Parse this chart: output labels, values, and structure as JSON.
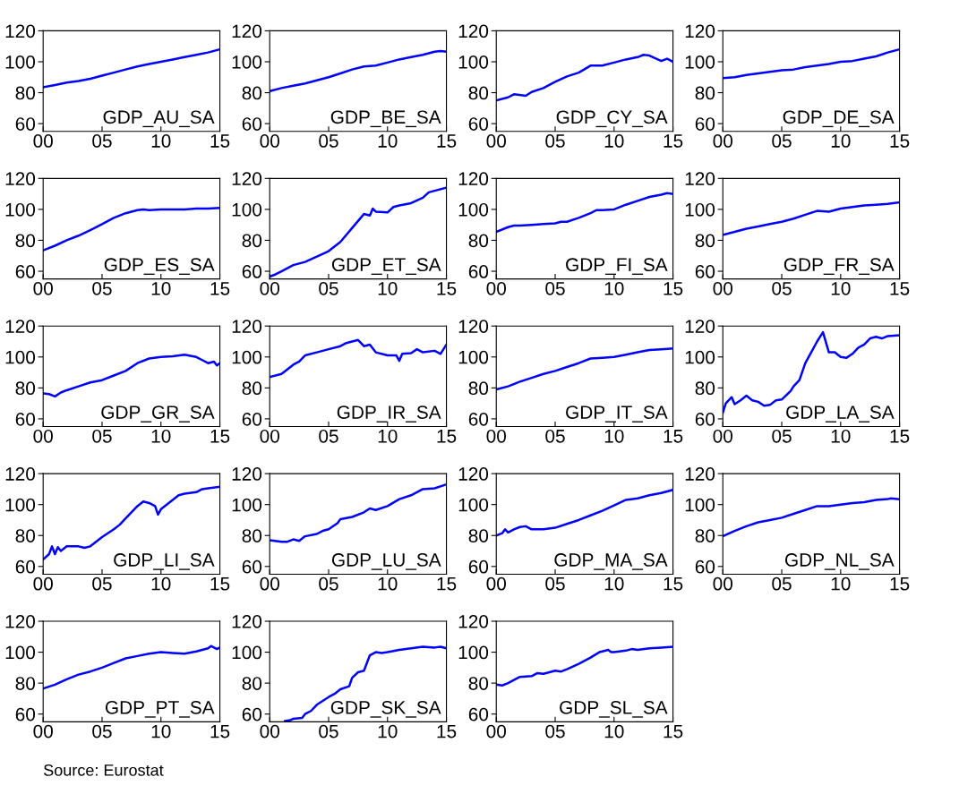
{
  "chart_data": [
    {
      "type": "line",
      "xlim": [
        2000,
        2015
      ],
      "ylim": [
        55,
        120
      ],
      "yticks": [
        60,
        80,
        100,
        120
      ],
      "xticks": [
        {
          "value": 2000,
          "label": "00"
        },
        {
          "value": 2005,
          "label": "05"
        },
        {
          "value": 2010,
          "label": "10"
        },
        {
          "value": 2015,
          "label": "15"
        }
      ],
      "legend": false,
      "grid": false,
      "series": [
        {
          "name": "GDP_AU_SA",
          "color": "#0000ff",
          "x": [
            2000,
            2001,
            2002,
            2003,
            2004,
            2005,
            2006,
            2007,
            2008,
            2009,
            2010,
            2011,
            2012,
            2013,
            2014,
            2015
          ],
          "values": [
            83.5,
            85,
            86.5,
            87.5,
            89,
            91,
            93,
            95,
            97,
            98.5,
            100,
            101.5,
            103,
            104.5,
            106,
            108
          ]
        }
      ]
    },
    {
      "type": "line",
      "xlim": [
        2000,
        2015
      ],
      "ylim": [
        55,
        120
      ],
      "yticks": [
        60,
        80,
        100,
        120
      ],
      "xticks": [
        {
          "value": 2000,
          "label": "00"
        },
        {
          "value": 2005,
          "label": "05"
        },
        {
          "value": 2010,
          "label": "10"
        },
        {
          "value": 2015,
          "label": "15"
        }
      ],
      "legend": false,
      "grid": false,
      "series": [
        {
          "name": "GDP_BE_SA",
          "color": "#0000ff",
          "x": [
            2000,
            2001,
            2002,
            2003,
            2004,
            2005,
            2006,
            2007,
            2008,
            2009,
            2010,
            2011,
            2012,
            2013,
            2014,
            2014.5,
            2015
          ],
          "values": [
            81,
            83,
            84.5,
            86,
            88,
            90,
            92.5,
            95,
            97,
            97.5,
            99.5,
            101.5,
            103,
            104.5,
            106.5,
            107,
            106.5
          ]
        }
      ]
    },
    {
      "type": "line",
      "xlim": [
        2000,
        2015
      ],
      "ylim": [
        55,
        120
      ],
      "yticks": [
        60,
        80,
        100,
        120
      ],
      "xticks": [
        {
          "value": 2000,
          "label": "00"
        },
        {
          "value": 2005,
          "label": "05"
        },
        {
          "value": 2010,
          "label": "10"
        },
        {
          "value": 2015,
          "label": "15"
        }
      ],
      "legend": false,
      "grid": false,
      "series": [
        {
          "name": "GDP_CY_SA",
          "color": "#0000ff",
          "x": [
            2000,
            2001,
            2001.5,
            2002.5,
            2003,
            2004,
            2005,
            2006,
            2007,
            2008,
            2009,
            2010,
            2011,
            2012,
            2012.5,
            2013,
            2014,
            2014.5,
            2015
          ],
          "values": [
            75,
            77,
            79,
            78,
            80.5,
            83,
            87,
            90.5,
            93,
            97.5,
            97.5,
            99.5,
            101.5,
            103,
            104.5,
            104,
            100.5,
            102,
            100
          ]
        }
      ]
    },
    {
      "type": "line",
      "xlim": [
        2000,
        2015
      ],
      "ylim": [
        55,
        120
      ],
      "yticks": [
        60,
        80,
        100,
        120
      ],
      "xticks": [
        {
          "value": 2000,
          "label": "00"
        },
        {
          "value": 2005,
          "label": "05"
        },
        {
          "value": 2010,
          "label": "10"
        },
        {
          "value": 2015,
          "label": "15"
        }
      ],
      "legend": false,
      "grid": false,
      "series": [
        {
          "name": "GDP_DE_SA",
          "color": "#0000ff",
          "x": [
            2000,
            2001,
            2002,
            2003,
            2004,
            2005,
            2006,
            2007,
            2008,
            2009,
            2010,
            2011,
            2012,
            2013,
            2014,
            2015
          ],
          "values": [
            89.5,
            90,
            91.5,
            92.5,
            93.5,
            94.5,
            95,
            96.5,
            97.5,
            98.5,
            100,
            100.5,
            102,
            103.5,
            106,
            108
          ]
        }
      ]
    },
    {
      "type": "line",
      "xlim": [
        2000,
        2015
      ],
      "ylim": [
        55,
        120
      ],
      "yticks": [
        60,
        80,
        100,
        120
      ],
      "xticks": [
        {
          "value": 2000,
          "label": "00"
        },
        {
          "value": 2005,
          "label": "05"
        },
        {
          "value": 2010,
          "label": "10"
        },
        {
          "value": 2015,
          "label": "15"
        }
      ],
      "legend": false,
      "grid": false,
      "series": [
        {
          "name": "GDP_ES_SA",
          "color": "#0000ff",
          "x": [
            2000,
            2001,
            2002,
            2003,
            2004,
            2005,
            2006,
            2007,
            2008,
            2008.5,
            2009,
            2010,
            2011,
            2012,
            2013,
            2014,
            2015
          ],
          "values": [
            73.5,
            76.5,
            80,
            83,
            86.5,
            90.5,
            94.5,
            97.5,
            99.5,
            100,
            99.5,
            100,
            100,
            100,
            100.5,
            100.5,
            101
          ]
        }
      ]
    },
    {
      "type": "line",
      "xlim": [
        2000,
        2015
      ],
      "ylim": [
        55,
        120
      ],
      "yticks": [
        60,
        80,
        100,
        120
      ],
      "xticks": [
        {
          "value": 2000,
          "label": "00"
        },
        {
          "value": 2005,
          "label": "05"
        },
        {
          "value": 2010,
          "label": "10"
        },
        {
          "value": 2015,
          "label": "15"
        }
      ],
      "legend": false,
      "grid": false,
      "series": [
        {
          "name": "GDP_ET_SA",
          "color": "#0000ff",
          "x": [
            2000,
            2000.5,
            2001,
            2001.5,
            2002,
            2003,
            2004,
            2005,
            2006,
            2007,
            2008,
            2008.5,
            2008.75,
            2009,
            2010,
            2010.5,
            2011,
            2012,
            2013,
            2013.5,
            2014,
            2015
          ],
          "values": [
            56.5,
            58,
            60,
            62,
            64,
            66,
            69.5,
            73,
            79,
            88,
            97,
            96,
            100.5,
            98.5,
            98,
            101.5,
            102.5,
            104,
            107.5,
            111,
            112,
            114
          ]
        }
      ]
    },
    {
      "type": "line",
      "xlim": [
        2000,
        2015
      ],
      "ylim": [
        55,
        120
      ],
      "yticks": [
        60,
        80,
        100,
        120
      ],
      "xticks": [
        {
          "value": 2000,
          "label": "00"
        },
        {
          "value": 2005,
          "label": "05"
        },
        {
          "value": 2010,
          "label": "10"
        },
        {
          "value": 2015,
          "label": "15"
        }
      ],
      "legend": false,
      "grid": false,
      "series": [
        {
          "name": "GDP_FI_SA",
          "color": "#0000ff",
          "x": [
            2000,
            2001,
            2001.5,
            2002,
            2003,
            2004,
            2005,
            2005.5,
            2006,
            2007,
            2008,
            2008.5,
            2009,
            2010,
            2011,
            2012,
            2013,
            2014,
            2014.5,
            2015
          ],
          "values": [
            85.5,
            88.5,
            89.5,
            89.5,
            90,
            90.5,
            91,
            92,
            92,
            94.5,
            97.5,
            99.5,
            99.5,
            100,
            103,
            105.5,
            108,
            109.5,
            110.5,
            110
          ]
        }
      ]
    },
    {
      "type": "line",
      "xlim": [
        2000,
        2015
      ],
      "ylim": [
        55,
        120
      ],
      "yticks": [
        60,
        80,
        100,
        120
      ],
      "xticks": [
        {
          "value": 2000,
          "label": "00"
        },
        {
          "value": 2005,
          "label": "05"
        },
        {
          "value": 2010,
          "label": "10"
        },
        {
          "value": 2015,
          "label": "15"
        }
      ],
      "legend": false,
      "grid": false,
      "series": [
        {
          "name": "GDP_FR_SA",
          "color": "#0000ff",
          "x": [
            2000,
            2001,
            2002,
            2003,
            2004,
            2005,
            2006,
            2007,
            2008,
            2009,
            2010,
            2011,
            2012,
            2013,
            2014,
            2015
          ],
          "values": [
            83.5,
            85.5,
            87.5,
            89,
            90.5,
            92,
            94,
            96.5,
            99,
            98.5,
            100.5,
            101.5,
            102.5,
            103,
            103.5,
            104.5
          ]
        }
      ]
    },
    {
      "type": "line",
      "xlim": [
        2000,
        2015
      ],
      "ylim": [
        55,
        120
      ],
      "yticks": [
        60,
        80,
        100,
        120
      ],
      "xticks": [
        {
          "value": 2000,
          "label": "00"
        },
        {
          "value": 2005,
          "label": "05"
        },
        {
          "value": 2010,
          "label": "10"
        },
        {
          "value": 2015,
          "label": "15"
        }
      ],
      "legend": false,
      "grid": false,
      "series": [
        {
          "name": "GDP_GR_SA",
          "color": "#0000ff",
          "x": [
            2000,
            2000.5,
            2001,
            2001.5,
            2002,
            2003,
            2004,
            2005,
            2006,
            2007,
            2008,
            2009,
            2010,
            2011,
            2012,
            2013,
            2013.5,
            2014,
            2014.5,
            2014.75,
            2015
          ],
          "values": [
            76.5,
            76,
            74.5,
            77,
            78.5,
            81,
            83.5,
            85,
            88,
            91,
            96,
            99,
            100,
            100.5,
            101.5,
            100,
            98,
            96,
            97,
            94.5,
            96
          ]
        }
      ]
    },
    {
      "type": "line",
      "xlim": [
        2000,
        2015
      ],
      "ylim": [
        55,
        120
      ],
      "yticks": [
        60,
        80,
        100,
        120
      ],
      "xticks": [
        {
          "value": 2000,
          "label": "00"
        },
        {
          "value": 2005,
          "label": "05"
        },
        {
          "value": 2010,
          "label": "10"
        },
        {
          "value": 2015,
          "label": "15"
        }
      ],
      "legend": false,
      "grid": false,
      "series": [
        {
          "name": "GDP_IR_SA",
          "color": "#0000ff",
          "x": [
            2000,
            2001,
            2002,
            2002.5,
            2003,
            2004,
            2005,
            2006,
            2006.5,
            2007,
            2007.5,
            2008,
            2008.5,
            2009,
            2010,
            2010.75,
            2011,
            2011.25,
            2012,
            2012.5,
            2013,
            2014,
            2014.5,
            2015
          ],
          "values": [
            87,
            89,
            95,
            97,
            101,
            103,
            105,
            107,
            109,
            110,
            111,
            107,
            108,
            103,
            101,
            101,
            97.5,
            102,
            102.5,
            105,
            103,
            104,
            102,
            108
          ]
        }
      ]
    },
    {
      "type": "line",
      "xlim": [
        2000,
        2015
      ],
      "ylim": [
        55,
        120
      ],
      "yticks": [
        60,
        80,
        100,
        120
      ],
      "xticks": [
        {
          "value": 2000,
          "label": "00"
        },
        {
          "value": 2005,
          "label": "05"
        },
        {
          "value": 2010,
          "label": "10"
        },
        {
          "value": 2015,
          "label": "15"
        }
      ],
      "legend": false,
      "grid": false,
      "series": [
        {
          "name": "GDP_IT_SA",
          "color": "#0000ff",
          "x": [
            2000,
            2001,
            2002,
            2003,
            2004,
            2005,
            2006,
            2007,
            2008,
            2009,
            2010,
            2011,
            2012,
            2013,
            2014,
            2015
          ],
          "values": [
            79,
            81,
            84,
            86.5,
            89,
            91,
            93.5,
            96,
            99,
            99.5,
            100,
            101.5,
            103,
            104.5,
            105,
            105.5
          ]
        }
      ]
    },
    {
      "type": "line",
      "xlim": [
        2000,
        2015
      ],
      "ylim": [
        55,
        120
      ],
      "yticks": [
        60,
        80,
        100,
        120
      ],
      "xticks": [
        {
          "value": 2000,
          "label": "00"
        },
        {
          "value": 2005,
          "label": "05"
        },
        {
          "value": 2010,
          "label": "10"
        },
        {
          "value": 2015,
          "label": "15"
        }
      ],
      "legend": false,
      "grid": false,
      "series": [
        {
          "name": "GDP_LA_SA",
          "color": "#0000ff",
          "x": [
            2000,
            2000.25,
            2000.75,
            2001,
            2001.5,
            2002,
            2002.5,
            2003,
            2003.5,
            2004,
            2004.5,
            2005,
            2005.75,
            2006,
            2006.5,
            2007,
            2007.5,
            2008,
            2008.5,
            2009,
            2009.5,
            2010,
            2010.5,
            2011,
            2011.5,
            2012,
            2012.5,
            2013,
            2013.5,
            2014,
            2015
          ],
          "values": [
            64,
            70,
            74,
            69.5,
            72,
            75,
            72,
            71,
            68.5,
            69,
            72,
            72.5,
            78,
            81,
            85,
            96,
            103,
            110,
            116,
            103,
            103,
            100,
            99.5,
            102,
            106,
            108,
            112,
            113,
            112,
            113.5,
            114
          ]
        }
      ]
    },
    {
      "type": "line",
      "xlim": [
        2000,
        2015
      ],
      "ylim": [
        55,
        120
      ],
      "yticks": [
        60,
        80,
        100,
        120
      ],
      "xticks": [
        {
          "value": 2000,
          "label": "00"
        },
        {
          "value": 2005,
          "label": "05"
        },
        {
          "value": 2010,
          "label": "10"
        },
        {
          "value": 2015,
          "label": "15"
        }
      ],
      "legend": false,
      "grid": false,
      "series": [
        {
          "name": "GDP_LI_SA",
          "color": "#0000ff",
          "x": [
            2000,
            2000.5,
            2000.75,
            2001,
            2001.25,
            2001.5,
            2002,
            2003,
            2003.5,
            2004,
            2005,
            2006,
            2006.5,
            2007,
            2008,
            2008.5,
            2009,
            2009.5,
            2009.75,
            2010,
            2011,
            2011.5,
            2012,
            2013,
            2013.5,
            2014,
            2015
          ],
          "values": [
            64.5,
            68,
            73,
            68,
            72.5,
            70,
            73,
            73,
            72,
            73,
            79,
            84,
            87,
            91,
            99,
            102,
            101,
            99,
            93.5,
            97,
            103,
            106,
            107,
            108,
            110,
            110.5,
            111.5
          ]
        }
      ]
    },
    {
      "type": "line",
      "xlim": [
        2000,
        2015
      ],
      "ylim": [
        55,
        120
      ],
      "yticks": [
        60,
        80,
        100,
        120
      ],
      "xticks": [
        {
          "value": 2000,
          "label": "00"
        },
        {
          "value": 2005,
          "label": "05"
        },
        {
          "value": 2010,
          "label": "10"
        },
        {
          "value": 2015,
          "label": "15"
        }
      ],
      "legend": false,
      "grid": false,
      "series": [
        {
          "name": "GDP_LU_SA",
          "color": "#0000ff",
          "x": [
            2000,
            2001,
            2001.5,
            2002,
            2002.5,
            2003,
            2004,
            2004.5,
            2005,
            2005.75,
            2006,
            2007,
            2008,
            2008.5,
            2009,
            2010,
            2011,
            2012,
            2012.5,
            2013,
            2014,
            2015
          ],
          "values": [
            77,
            76,
            76,
            77.5,
            76.5,
            79.5,
            81,
            83,
            84,
            88,
            90.5,
            92,
            95,
            97.5,
            96.5,
            99,
            103.5,
            106,
            108,
            110,
            110.5,
            113
          ]
        }
      ]
    },
    {
      "type": "line",
      "xlim": [
        2000,
        2015
      ],
      "ylim": [
        55,
        120
      ],
      "yticks": [
        60,
        80,
        100,
        120
      ],
      "xticks": [
        {
          "value": 2000,
          "label": "00"
        },
        {
          "value": 2005,
          "label": "05"
        },
        {
          "value": 2010,
          "label": "10"
        },
        {
          "value": 2015,
          "label": "15"
        }
      ],
      "legend": false,
      "grid": false,
      "series": [
        {
          "name": "GDP_MA_SA",
          "color": "#0000ff",
          "x": [
            2000,
            2000.5,
            2000.75,
            2001,
            2001.5,
            2002,
            2002.5,
            2003,
            2004,
            2005,
            2006,
            2007,
            2008,
            2009,
            2010,
            2011,
            2012,
            2013,
            2014,
            2015
          ],
          "values": [
            80,
            81.5,
            84,
            82,
            84,
            85.5,
            86,
            84,
            84,
            85,
            87.5,
            90,
            93,
            96,
            99.5,
            103,
            104,
            106,
            107.5,
            109.5
          ]
        }
      ]
    },
    {
      "type": "line",
      "xlim": [
        2000,
        2015
      ],
      "ylim": [
        55,
        120
      ],
      "yticks": [
        60,
        80,
        100,
        120
      ],
      "xticks": [
        {
          "value": 2000,
          "label": "00"
        },
        {
          "value": 2005,
          "label": "05"
        },
        {
          "value": 2010,
          "label": "10"
        },
        {
          "value": 2015,
          "label": "15"
        }
      ],
      "legend": false,
      "grid": false,
      "series": [
        {
          "name": "GDP_NL_SA",
          "color": "#0000ff",
          "x": [
            2000,
            2001,
            2002,
            2003,
            2004,
            2005,
            2006,
            2007,
            2008,
            2009,
            2010,
            2011,
            2012,
            2013,
            2014,
            2014.25,
            2015
          ],
          "values": [
            79.5,
            83,
            86,
            88.5,
            90,
            91.5,
            94,
            96.5,
            99,
            99,
            100,
            101,
            101.5,
            103,
            103.5,
            104,
            103.5
          ]
        }
      ]
    },
    {
      "type": "line",
      "xlim": [
        2000,
        2015
      ],
      "ylim": [
        55,
        120
      ],
      "yticks": [
        60,
        80,
        100,
        120
      ],
      "xticks": [
        {
          "value": 2000,
          "label": "00"
        },
        {
          "value": 2005,
          "label": "05"
        },
        {
          "value": 2010,
          "label": "10"
        },
        {
          "value": 2015,
          "label": "15"
        }
      ],
      "legend": false,
      "grid": false,
      "annotations": [
        "Source: Eurostat"
      ],
      "series": [
        {
          "name": "GDP_PT_SA",
          "color": "#0000ff",
          "x": [
            2000,
            2001,
            2002,
            2003,
            2004,
            2005,
            2006,
            2007,
            2008,
            2009,
            2010,
            2011,
            2012,
            2013,
            2014,
            2014.25,
            2014.75,
            2015
          ],
          "values": [
            76.5,
            79,
            82.5,
            85.5,
            87.5,
            90,
            93,
            96,
            97.5,
            99,
            100,
            99.5,
            99,
            100.5,
            102.5,
            104,
            102,
            103
          ]
        }
      ]
    },
    {
      "type": "line",
      "xlim": [
        2000,
        2015
      ],
      "ylim": [
        55,
        120
      ],
      "yticks": [
        60,
        80,
        100,
        120
      ],
      "xticks": [
        {
          "value": 2000,
          "label": "00"
        },
        {
          "value": 2005,
          "label": "05"
        },
        {
          "value": 2010,
          "label": "10"
        },
        {
          "value": 2015,
          "label": "15"
        }
      ],
      "legend": false,
      "grid": false,
      "series": [
        {
          "name": "GDP_SK_SA",
          "color": "#0000ff",
          "x": [
            2001.3,
            2001.75,
            2002,
            2002.75,
            2003,
            2003.5,
            2004,
            2005,
            2005.5,
            2006,
            2006.75,
            2007,
            2007.5,
            2008,
            2008.5,
            2009,
            2009.5,
            2010,
            2011,
            2012,
            2013,
            2014,
            2014.5,
            2015
          ],
          "values": [
            55.5,
            56,
            57,
            57.5,
            60,
            62,
            66,
            71,
            73,
            76,
            78,
            83.5,
            87,
            88,
            98,
            100,
            99.5,
            100,
            101.5,
            102.5,
            103.5,
            103,
            103.5,
            102.5
          ]
        }
      ]
    },
    {
      "type": "line",
      "xlim": [
        2000,
        2015
      ],
      "ylim": [
        55,
        120
      ],
      "yticks": [
        60,
        80,
        100,
        120
      ],
      "xticks": [
        {
          "value": 2000,
          "label": "00"
        },
        {
          "value": 2005,
          "label": "05"
        },
        {
          "value": 2010,
          "label": "10"
        },
        {
          "value": 2015,
          "label": "15"
        }
      ],
      "legend": false,
      "grid": false,
      "series": [
        {
          "name": "GDP_SL_SA",
          "color": "#0000ff",
          "x": [
            2000,
            2000.5,
            2001,
            2002,
            2003,
            2003.5,
            2004,
            2005,
            2005.5,
            2006,
            2007,
            2008,
            2008.75,
            2009,
            2009.5,
            2009.75,
            2010,
            2011,
            2011.5,
            2012,
            2013,
            2014,
            2015
          ],
          "values": [
            79,
            78.5,
            80,
            84,
            84.5,
            86.5,
            86,
            88,
            87.5,
            89,
            92.5,
            96.5,
            100,
            100.5,
            101.5,
            100,
            100,
            101,
            102,
            101.5,
            102.5,
            103,
            103.5
          ]
        }
      ]
    }
  ]
}
